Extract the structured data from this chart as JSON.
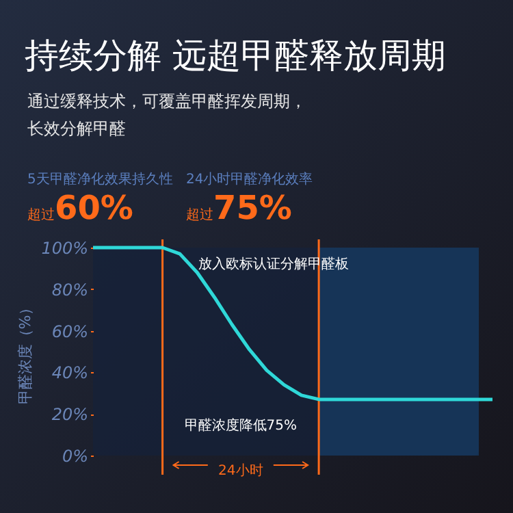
{
  "chart_data": {
    "type": "line",
    "title": "持续分解 远超甲醛释放周期",
    "subtitle": "通过缓释技术，可覆盖甲醛挥发周期，长效分解甲醛",
    "ylabel": "甲醛浓度（%）",
    "annotations": [
      "5天甲醛净化效果持久性",
      "超过",
      "60%",
      "24小时甲醛净化效率",
      "超过",
      "75%",
      "放入欧标认证分解甲醛板",
      "甲醛浓度降低75%",
      "24小时"
    ],
    "categories": [
      null,
      null,
      null,
      null,
      null,
      null,
      null,
      null,
      null,
      null,
      null,
      null,
      null,
      null,
      null,
      null,
      null,
      null,
      null,
      null,
      null,
      null,
      null,
      null
    ],
    "series": [
      {
        "color": "#2fd8d8",
        "values": [
          100,
          100,
          100,
          100,
          100,
          97,
          88,
          76,
          63,
          51,
          41,
          34,
          29,
          27,
          27,
          27,
          27,
          27,
          27,
          27,
          27,
          27,
          27,
          27
        ]
      }
    ],
    "ylim": [
      0,
      100
    ],
    "yticks": [
      {
        "value": 0,
        "label": "0%"
      },
      {
        "value": 20,
        "label": "20%"
      },
      {
        "value": 40,
        "label": "40%"
      },
      {
        "value": 60,
        "label": "60%"
      },
      {
        "value": 80,
        "label": "80%"
      },
      {
        "value": 100,
        "label": "100%"
      }
    ],
    "tick_labels": "y",
    "grid": false
  }
}
